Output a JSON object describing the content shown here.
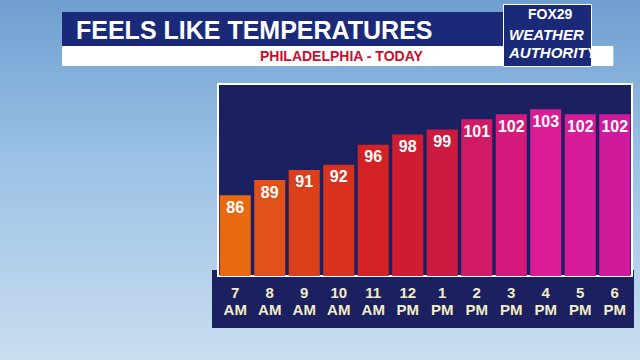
{
  "chart_data": {
    "type": "bar",
    "title": "FEELS LIKE TEMPERATURES",
    "subtitle": "PHILADELPHIA - TODAY",
    "categories": [
      "7 AM",
      "8 AM",
      "9 AM",
      "10 AM",
      "11 AM",
      "12 PM",
      "1 PM",
      "2 PM",
      "3 PM",
      "4 PM",
      "5 PM",
      "6 PM"
    ],
    "values": [
      86,
      89,
      91,
      92,
      96,
      98,
      99,
      101,
      102,
      103,
      102,
      102
    ],
    "colors": [
      "#e8690f",
      "#e2511a",
      "#dc3f1c",
      "#d8321e",
      "#d42224",
      "#d01c30",
      "#cc1a40",
      "#d01a66",
      "#d41a7c",
      "#dc1c94",
      "#d61a98",
      "#d01a9c"
    ],
    "ylim": [
      70,
      108
    ],
    "grid": false,
    "data_labels": true,
    "tick_labels": "x"
  },
  "branding": {
    "channel": "FOX29",
    "name": "WEATHER AUTHORITY"
  }
}
